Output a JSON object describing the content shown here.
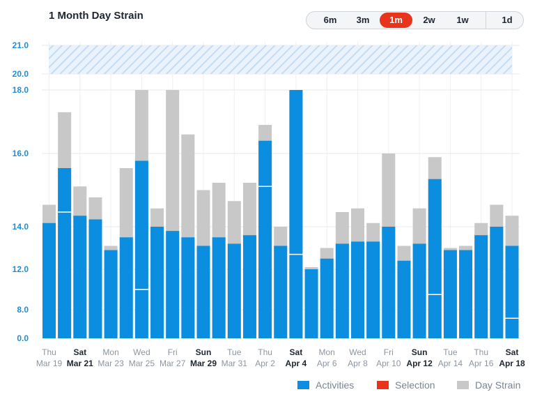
{
  "title": "1 Month Day Strain",
  "range_selector": [
    {
      "label": "6m",
      "active": false
    },
    {
      "label": "3m",
      "active": false
    },
    {
      "label": "1m",
      "active": true
    },
    {
      "label": "2w",
      "active": false
    },
    {
      "label": "1w",
      "active": false
    },
    {
      "label": "1d",
      "active": false
    }
  ],
  "legend": {
    "activities": "Activities",
    "selection": "Selection",
    "day_strain": "Day Strain"
  },
  "colors": {
    "activities": "#0c8ee0",
    "selection": "#e8341c",
    "day_strain": "#c8c8c8",
    "axis_label": "#1e8fd6",
    "highlight_band": "#cfe3f7"
  },
  "chart_data": {
    "type": "bar",
    "stacked": true,
    "title": "1 Month Day Strain",
    "y_ticks": [
      0.0,
      8.0,
      12.0,
      14.0,
      16.0,
      18.0,
      20.0,
      21.0
    ],
    "y_tick_labels": [
      "0.0",
      "8.0",
      "12.0",
      "14.0",
      "16.0",
      "18.0",
      "20.0",
      "21.0"
    ],
    "ylim": [
      0,
      21
    ],
    "highlight_band": [
      20.0,
      21.0
    ],
    "categories": [
      "Mar 19",
      "Mar 20",
      "Mar 21",
      "Mar 22",
      "Mar 23",
      "Mar 24",
      "Mar 25",
      "Mar 26",
      "Mar 27",
      "Mar 28",
      "Mar 29",
      "Mar 30",
      "Mar 31",
      "Apr 1",
      "Apr 2",
      "Apr 3",
      "Apr 4",
      "Apr 5",
      "Apr 6",
      "Apr 7",
      "Apr 8",
      "Apr 9",
      "Apr 10",
      "Apr 11",
      "Apr 12",
      "Apr 13",
      "Apr 14",
      "Apr 15",
      "Apr 16",
      "Apr 17",
      "Apr 18"
    ],
    "x_tick_labels": [
      {
        "index": 0,
        "day": "Thu",
        "date": "Mar 19",
        "weekend": false
      },
      {
        "index": 2,
        "day": "Sat",
        "date": "Mar 21",
        "weekend": true
      },
      {
        "index": 4,
        "day": "Mon",
        "date": "Mar 23",
        "weekend": false
      },
      {
        "index": 6,
        "day": "Wed",
        "date": "Mar 25",
        "weekend": false
      },
      {
        "index": 8,
        "day": "Fri",
        "date": "Mar 27",
        "weekend": false
      },
      {
        "index": 10,
        "day": "Sun",
        "date": "Mar 29",
        "weekend": true
      },
      {
        "index": 12,
        "day": "Tue",
        "date": "Mar 31",
        "weekend": false
      },
      {
        "index": 14,
        "day": "Thu",
        "date": "Apr 2",
        "weekend": false
      },
      {
        "index": 16,
        "day": "Sat",
        "date": "Apr 4",
        "weekend": true
      },
      {
        "index": 18,
        "day": "Mon",
        "date": "Apr 6",
        "weekend": false
      },
      {
        "index": 20,
        "day": "Wed",
        "date": "Apr 8",
        "weekend": false
      },
      {
        "index": 22,
        "day": "Fri",
        "date": "Apr 10",
        "weekend": false
      },
      {
        "index": 24,
        "day": "Sun",
        "date": "Apr 12",
        "weekend": true
      },
      {
        "index": 26,
        "day": "Tue",
        "date": "Apr 14",
        "weekend": false
      },
      {
        "index": 28,
        "day": "Thu",
        "date": "Apr 16",
        "weekend": false
      },
      {
        "index": 30,
        "day": "Sat",
        "date": "Apr 18",
        "weekend": true
      }
    ],
    "series": [
      {
        "name": "Day Strain",
        "values": [
          14.6,
          17.3,
          15.1,
          14.8,
          13.1,
          15.6,
          18.0,
          14.5,
          18.0,
          16.6,
          15.0,
          15.2,
          14.7,
          15.2,
          16.9,
          14.0,
          18.0,
          12.1,
          13.0,
          14.4,
          14.5,
          14.1,
          16.0,
          13.1,
          14.5,
          15.9,
          13.0,
          13.1,
          14.1,
          14.6,
          14.3
        ]
      },
      {
        "name": "Activities",
        "segments": [
          [
            14.1
          ],
          [
            15.6,
            14.4
          ],
          [
            14.3
          ],
          [
            14.2
          ],
          [
            12.9
          ],
          [
            13.5
          ],
          [
            15.8,
            10.0
          ],
          [
            14.0
          ],
          [
            13.8
          ],
          [
            13.5
          ],
          [
            13.1
          ],
          [
            13.5
          ],
          [
            13.2
          ],
          [
            13.6
          ],
          [
            16.4,
            15.1
          ],
          [
            13.1
          ],
          [
            18.0,
            12.7
          ],
          [
            12.0
          ],
          [
            12.5
          ],
          [
            13.2
          ],
          [
            13.3
          ],
          [
            13.3
          ],
          [
            14.0
          ],
          [
            12.4
          ],
          [
            13.2
          ],
          [
            15.3,
            9.5
          ],
          [
            12.9
          ],
          [
            12.9
          ],
          [
            13.6
          ],
          [
            14.0
          ],
          [
            13.1,
            5.6
          ]
        ]
      }
    ]
  }
}
